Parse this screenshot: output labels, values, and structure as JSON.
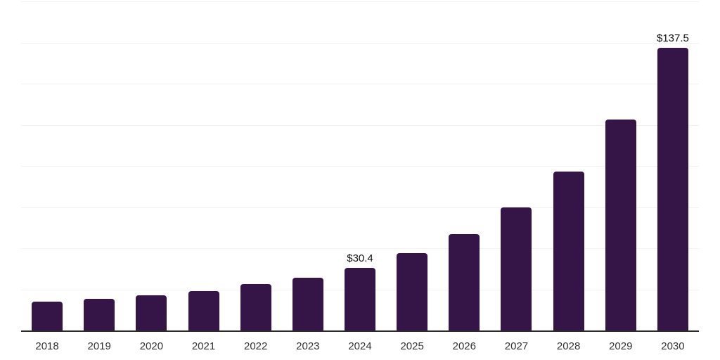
{
  "chart_data": {
    "type": "bar",
    "title": "",
    "categories": [
      "2018",
      "2019",
      "2020",
      "2021",
      "2022",
      "2023",
      "2024",
      "2025",
      "2026",
      "2027",
      "2028",
      "2029",
      "2030"
    ],
    "values": [
      14.1,
      15.3,
      17.0,
      19.3,
      22.4,
      25.8,
      30.4,
      37.6,
      47.0,
      59.7,
      77.4,
      102.6,
      137.5
    ],
    "point_labels": [
      "",
      "",
      "",
      "",
      "",
      "",
      "$30.4",
      "",
      "",
      "",
      "",
      "",
      "$137.5"
    ],
    "xlabel": "",
    "ylabel": "",
    "ylim": [
      0,
      160
    ],
    "gridline_step": 20,
    "grid": "horizontal-only",
    "legend": "none",
    "colors": {
      "bar": "#351448",
      "axis": "#2b2b2b",
      "gridline": "#f2f2f2",
      "value_label": "#111111",
      "tick_label": "#333333",
      "background": "#ffffff"
    }
  }
}
